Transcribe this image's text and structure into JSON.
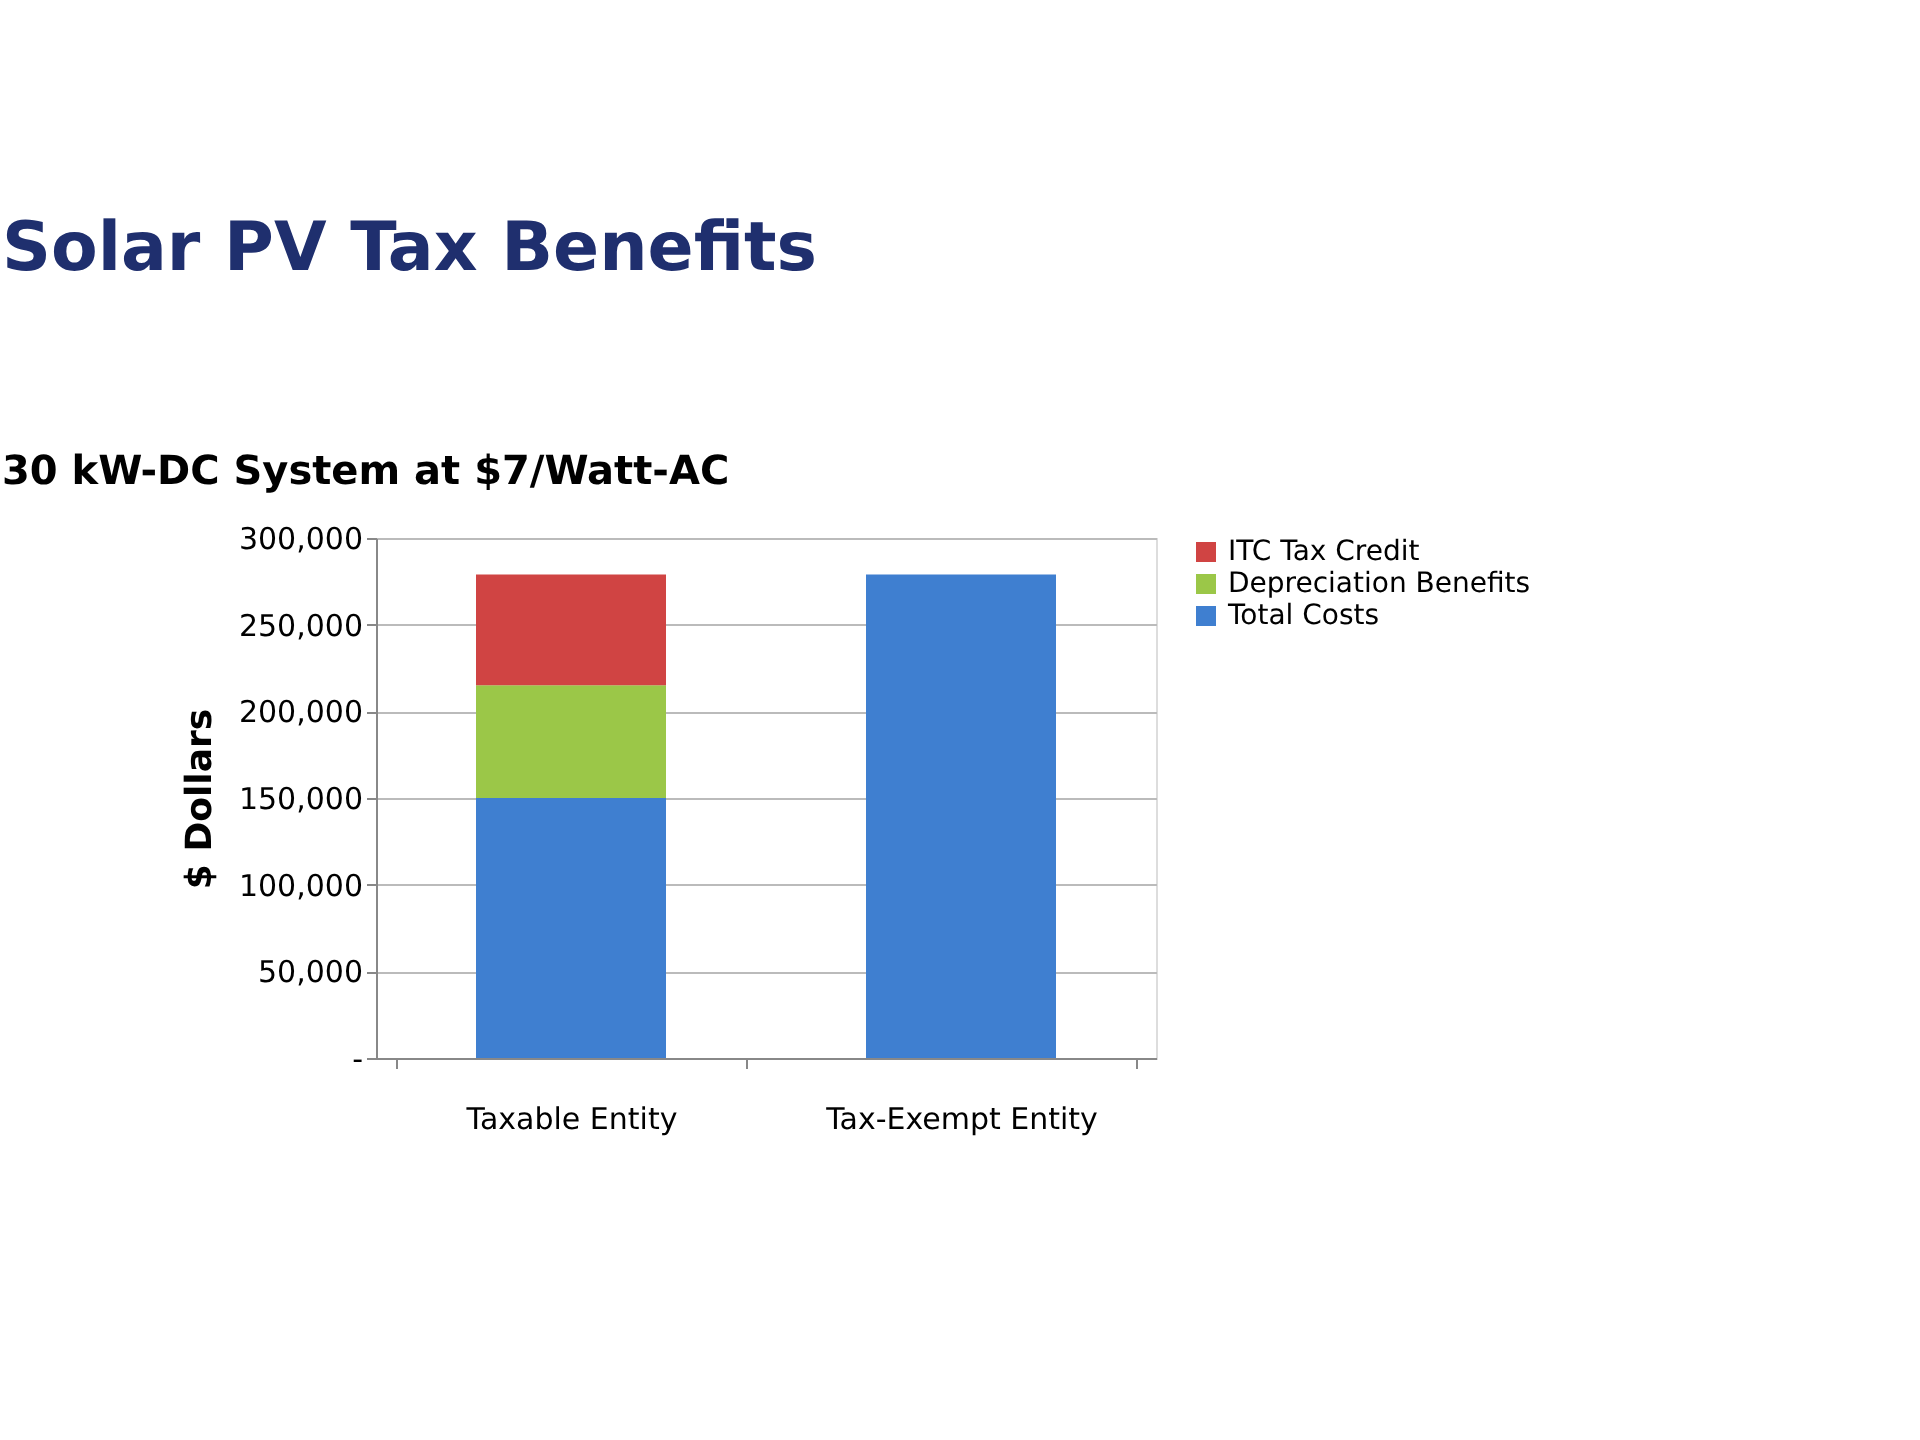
{
  "chart_data": {
    "type": "bar",
    "title": "Solar PV Tax Benefits",
    "subtitle": "30 kW-DC System at $7/Watt-AC",
    "ylabel": "$ Dollars",
    "categories": [
      "Taxable Entity",
      "Tax-Exempt Entity"
    ],
    "stacked": true,
    "series": [
      {
        "name": "Total Costs",
        "color": "#3f7fd0",
        "values": [
          150000,
          279000
        ]
      },
      {
        "name": "Depreciation Benefits",
        "color": "#9bc748",
        "values": [
          65000,
          null
        ]
      },
      {
        "name": "ITC Tax Credit",
        "color": "#d04443",
        "values": [
          64000,
          null
        ]
      }
    ],
    "ylim": [
      0,
      300000
    ],
    "yticks": [
      {
        "value": 0,
        "label": "-"
      },
      {
        "value": 50000,
        "label": "50,000"
      },
      {
        "value": 100000,
        "label": "100,000"
      },
      {
        "value": 150000,
        "label": "150,000"
      },
      {
        "value": 200000,
        "label": "200,000"
      },
      {
        "value": 250000,
        "label": "250,000"
      },
      {
        "value": 300000,
        "label": "300,000"
      }
    ],
    "grid": "y",
    "legend": "right"
  }
}
